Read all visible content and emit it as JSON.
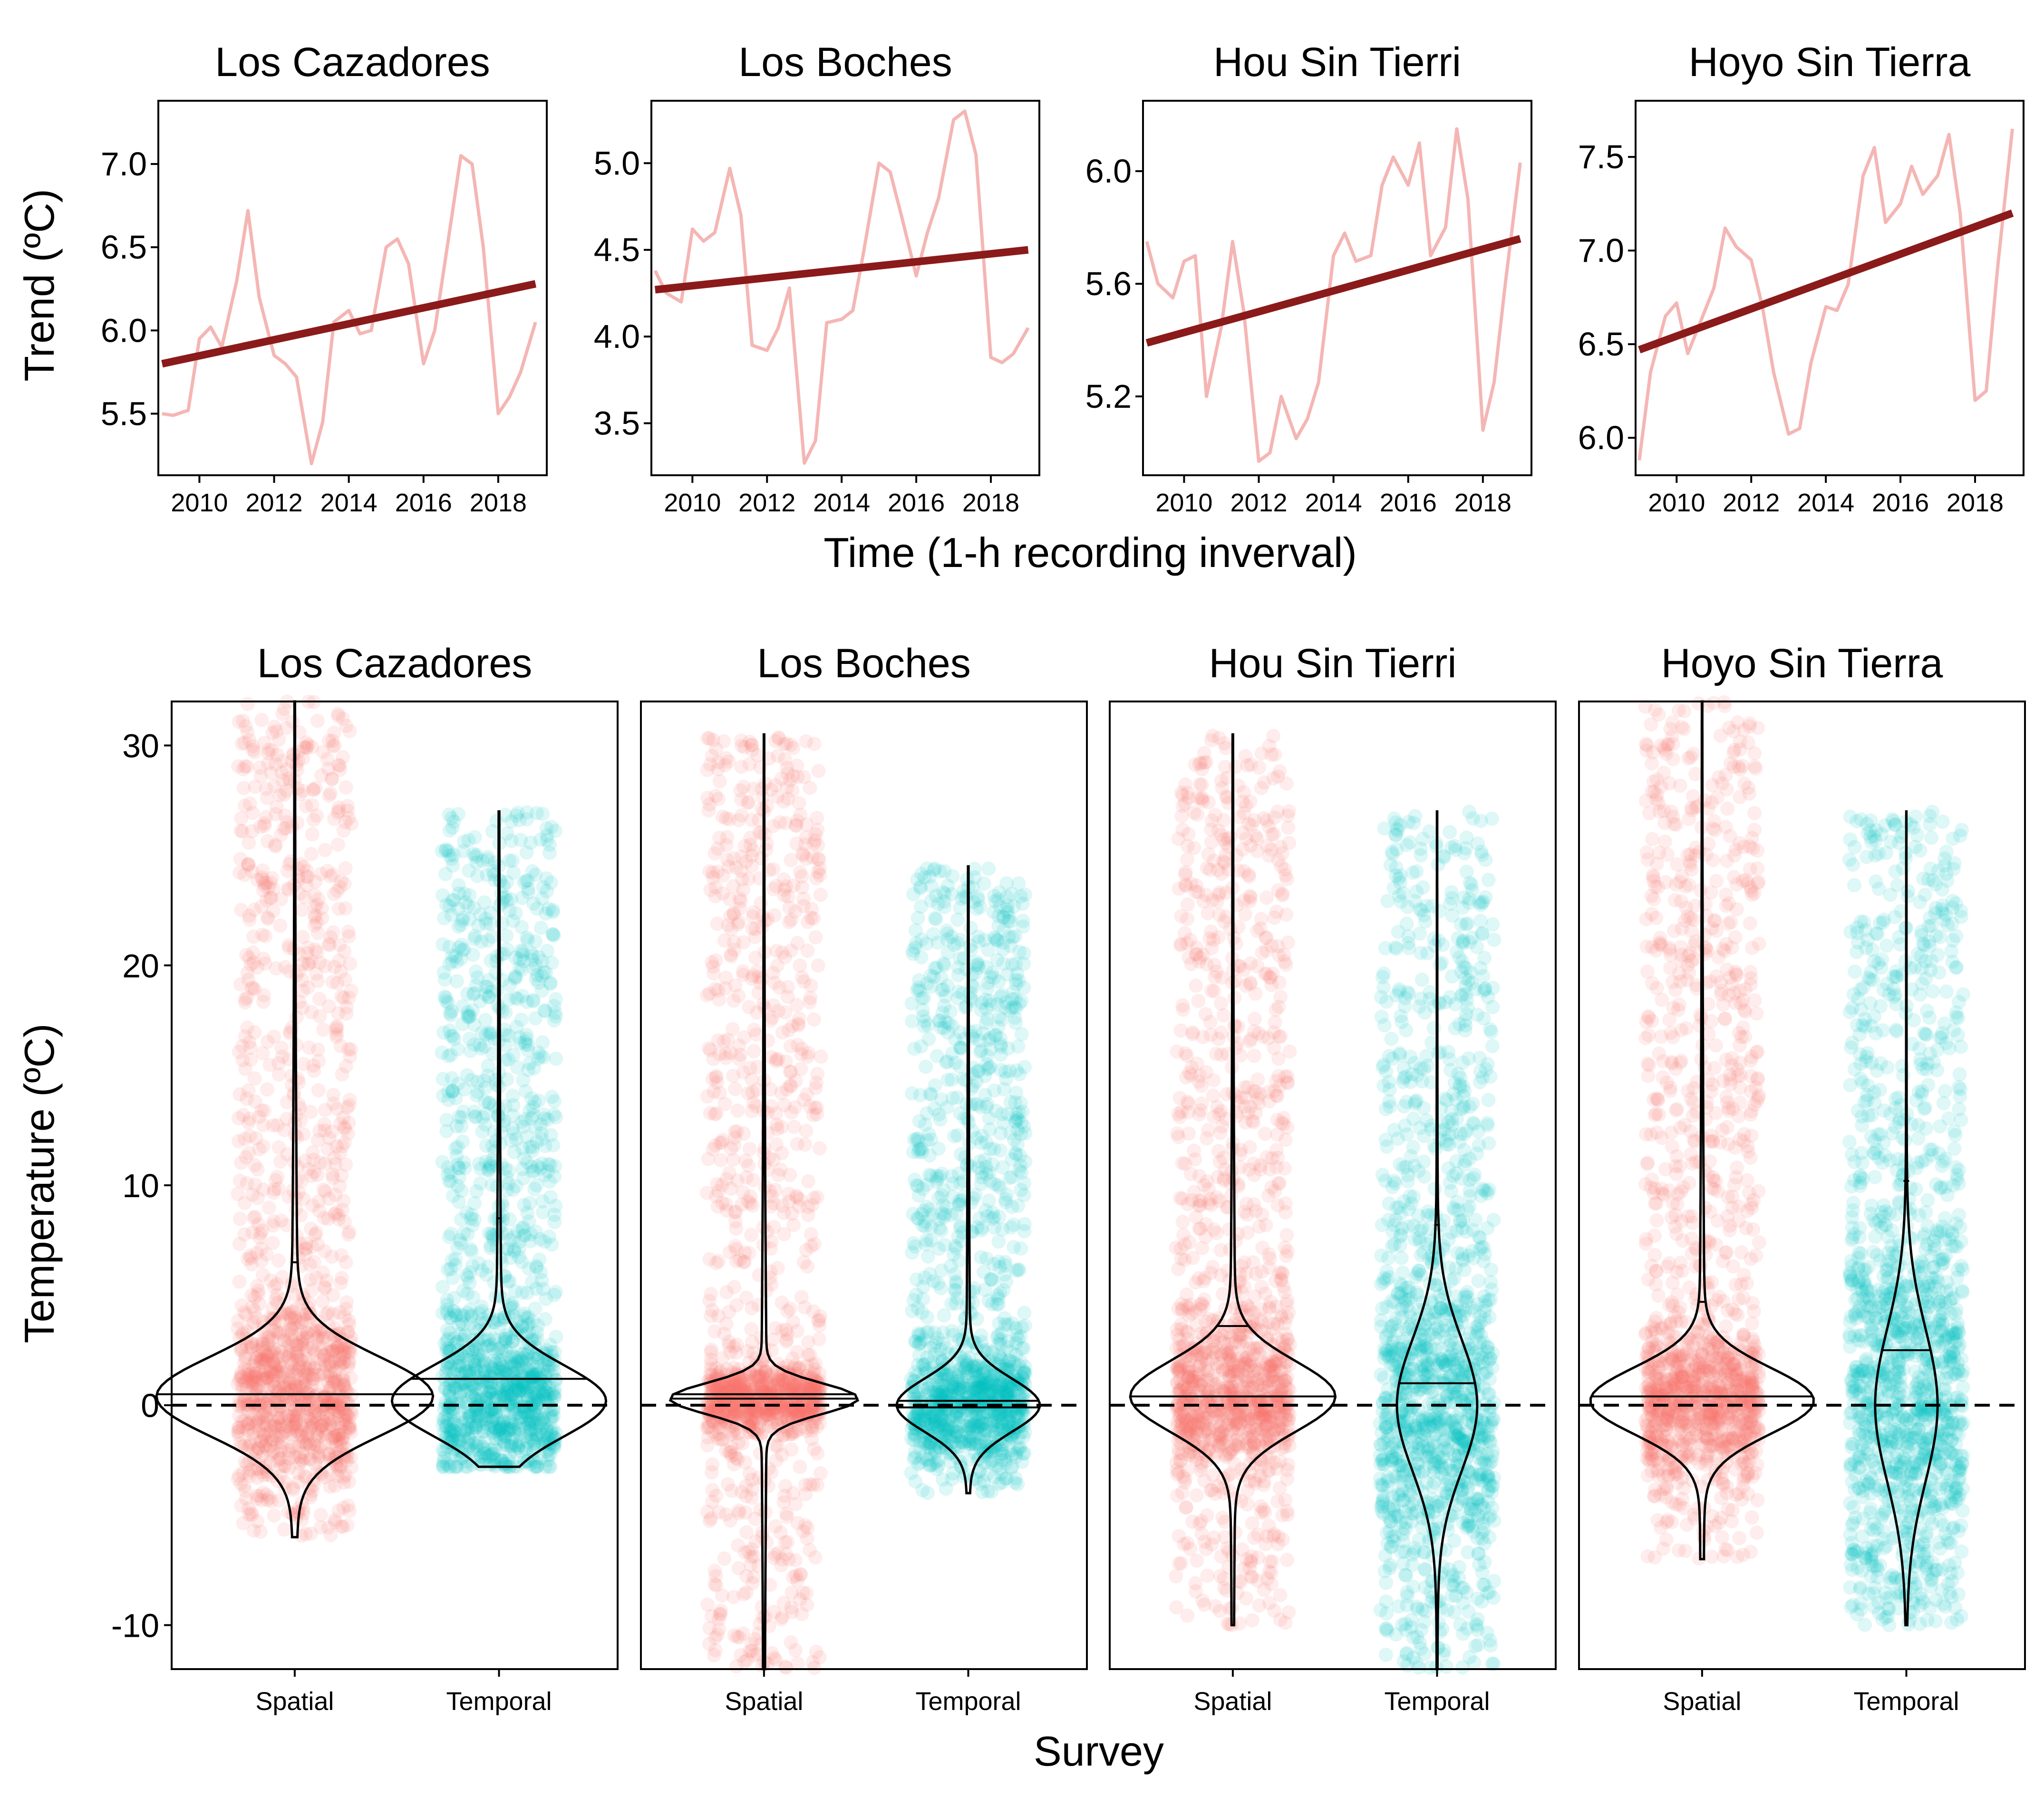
{
  "colors": {
    "trend_raw": "#F4B6B4",
    "trend_fit": "#8B1A1A",
    "spatial": "#F8766D",
    "temporal": "#00BFC4",
    "ink": "#000000"
  },
  "top_row": {
    "ylabel": "Trend (ºC)",
    "xlabel": "Time (1-h recording inverval)"
  },
  "bottom_row": {
    "ylabel": "Temperature (ºC)",
    "xlabel": "Survey"
  },
  "chart_data": [
    {
      "type": "line",
      "title": "Los Cazadores",
      "xlim": [
        2008.9,
        2019.3
      ],
      "ylim": [
        5.13,
        7.38
      ],
      "xticks": [
        2010,
        2012,
        2014,
        2016,
        2018
      ],
      "yticks": [
        5.5,
        6.0,
        6.5,
        7.0
      ],
      "ytick_labels": [
        "5.5",
        "6.0",
        "6.5",
        "7.0"
      ],
      "series": [
        {
          "kind": "raw",
          "x": [
            2009.0,
            2009.3,
            2009.7,
            2010.0,
            2010.3,
            2010.6,
            2011.0,
            2011.3,
            2011.6,
            2012.0,
            2012.3,
            2012.6,
            2013.0,
            2013.3,
            2013.6,
            2014.0,
            2014.3,
            2014.6,
            2015.0,
            2015.3,
            2015.6,
            2016.0,
            2016.3,
            2016.6,
            2017.0,
            2017.3,
            2017.6,
            2018.0,
            2018.3,
            2018.6,
            2019.0
          ],
          "y": [
            5.5,
            5.49,
            5.52,
            5.95,
            6.02,
            5.9,
            6.3,
            6.72,
            6.2,
            5.85,
            5.8,
            5.72,
            5.2,
            5.45,
            6.05,
            6.12,
            5.98,
            6.0,
            6.5,
            6.55,
            6.4,
            5.8,
            6.0,
            6.45,
            7.05,
            7.0,
            6.5,
            5.5,
            5.6,
            5.75,
            6.05
          ]
        },
        {
          "kind": "fit",
          "x": [
            2009.0,
            2019.0
          ],
          "y": [
            5.8,
            6.28
          ]
        }
      ]
    },
    {
      "type": "line",
      "title": "Los Boches",
      "xlim": [
        2008.9,
        2019.3
      ],
      "ylim": [
        3.2,
        5.36
      ],
      "xticks": [
        2010,
        2012,
        2014,
        2016,
        2018
      ],
      "yticks": [
        3.5,
        4.0,
        4.5,
        5.0
      ],
      "ytick_labels": [
        "3.5",
        "4.0",
        "4.5",
        "5.0"
      ],
      "series": [
        {
          "kind": "raw",
          "x": [
            2009.0,
            2009.3,
            2009.7,
            2010.0,
            2010.3,
            2010.6,
            2011.0,
            2011.3,
            2011.6,
            2012.0,
            2012.3,
            2012.6,
            2013.0,
            2013.3,
            2013.6,
            2014.0,
            2014.3,
            2014.6,
            2015.0,
            2015.3,
            2015.6,
            2016.0,
            2016.3,
            2016.6,
            2017.0,
            2017.3,
            2017.6,
            2018.0,
            2018.3,
            2018.6,
            2019.0
          ],
          "y": [
            4.38,
            4.25,
            4.2,
            4.62,
            4.55,
            4.6,
            4.97,
            4.7,
            3.95,
            3.92,
            4.05,
            4.28,
            3.27,
            3.4,
            4.08,
            4.1,
            4.15,
            4.5,
            5.0,
            4.95,
            4.7,
            4.35,
            4.6,
            4.8,
            5.25,
            5.3,
            5.05,
            3.88,
            3.85,
            3.9,
            4.05
          ]
        },
        {
          "kind": "fit",
          "x": [
            2009.0,
            2019.0
          ],
          "y": [
            4.27,
            4.5
          ]
        }
      ]
    },
    {
      "type": "line",
      "title": "Hou Sin Tierri",
      "xlim": [
        2008.9,
        2019.3
      ],
      "ylim": [
        4.92,
        6.25
      ],
      "xticks": [
        2010,
        2012,
        2014,
        2016,
        2018
      ],
      "yticks": [
        5.2,
        5.6,
        6.0
      ],
      "ytick_labels": [
        "5.2",
        "5.6",
        "6.0"
      ],
      "series": [
        {
          "kind": "raw",
          "x": [
            2009.0,
            2009.3,
            2009.7,
            2010.0,
            2010.3,
            2010.6,
            2011.0,
            2011.3,
            2011.6,
            2012.0,
            2012.3,
            2012.6,
            2013.0,
            2013.3,
            2013.6,
            2014.0,
            2014.3,
            2014.6,
            2015.0,
            2015.3,
            2015.6,
            2016.0,
            2016.3,
            2016.6,
            2017.0,
            2017.3,
            2017.6,
            2018.0,
            2018.3,
            2018.6,
            2019.0
          ],
          "y": [
            5.75,
            5.6,
            5.55,
            5.68,
            5.7,
            5.2,
            5.45,
            5.75,
            5.5,
            4.97,
            5.0,
            5.2,
            5.05,
            5.12,
            5.25,
            5.7,
            5.78,
            5.68,
            5.7,
            5.95,
            6.05,
            5.95,
            6.1,
            5.7,
            5.8,
            6.15,
            5.9,
            5.08,
            5.25,
            5.6,
            6.03
          ]
        },
        {
          "kind": "fit",
          "x": [
            2009.0,
            2019.0
          ],
          "y": [
            5.39,
            5.76
          ]
        }
      ]
    },
    {
      "type": "line",
      "title": "Hoyo Sin Tierra",
      "xlim": [
        2008.9,
        2019.3
      ],
      "ylim": [
        5.8,
        7.8
      ],
      "xticks": [
        2010,
        2012,
        2014,
        2016,
        2018
      ],
      "yticks": [
        6.0,
        6.5,
        7.0,
        7.5
      ],
      "ytick_labels": [
        "6.0",
        "6.5",
        "7.0",
        "7.5"
      ],
      "series": [
        {
          "kind": "raw",
          "x": [
            2009.0,
            2009.3,
            2009.7,
            2010.0,
            2010.3,
            2010.6,
            2011.0,
            2011.3,
            2011.6,
            2012.0,
            2012.3,
            2012.6,
            2013.0,
            2013.3,
            2013.6,
            2014.0,
            2014.3,
            2014.6,
            2015.0,
            2015.3,
            2015.6,
            2016.0,
            2016.3,
            2016.6,
            2017.0,
            2017.3,
            2017.6,
            2018.0,
            2018.3,
            2018.6,
            2019.0
          ],
          "y": [
            5.88,
            6.35,
            6.65,
            6.72,
            6.45,
            6.6,
            6.8,
            7.12,
            7.02,
            6.95,
            6.7,
            6.35,
            6.02,
            6.05,
            6.4,
            6.7,
            6.68,
            6.82,
            7.4,
            7.55,
            7.15,
            7.25,
            7.45,
            7.3,
            7.4,
            7.62,
            7.2,
            6.2,
            6.25,
            6.9,
            7.65
          ]
        },
        {
          "kind": "fit",
          "x": [
            2009.0,
            2019.0
          ],
          "y": [
            6.47,
            7.2
          ]
        }
      ]
    },
    {
      "type": "scatter",
      "title": "Los Cazadores",
      "ylim": [
        -12,
        32
      ],
      "yticks": [
        -10,
        0,
        10,
        20,
        30
      ],
      "categories": [
        "Spatial",
        "Temporal"
      ],
      "series": [
        {
          "name": "Spatial",
          "range": [
            -6,
            32
          ],
          "mode": 0.4,
          "spread": 1.8,
          "median": 0.5,
          "mean": 6.5,
          "max_halfwidth": 0.62
        },
        {
          "name": "Temporal",
          "range": [
            -2.8,
            27
          ],
          "mode": 0.2,
          "spread": 1.6,
          "median": 1.2,
          "mean": 8.5,
          "max_halfwidth": 0.48
        }
      ]
    },
    {
      "type": "scatter",
      "title": "Los Boches",
      "ylim": [
        -12,
        32
      ],
      "yticks": [
        -10,
        0,
        10,
        20,
        30
      ],
      "categories": [
        "Spatial",
        "Temporal"
      ],
      "series": [
        {
          "name": "Spatial",
          "range": [
            -12,
            30.5
          ],
          "mode": 0.3,
          "spread": 0.7,
          "median": 0.5,
          "mean": 0.3,
          "max_halfwidth": 0.42
        },
        {
          "name": "Temporal",
          "range": [
            -4,
            24.5
          ],
          "mode": 0.0,
          "spread": 1.2,
          "median": 0.2,
          "mean": -0.1,
          "max_halfwidth": 0.32
        }
      ]
    },
    {
      "type": "scatter",
      "title": "Hou Sin Tierri",
      "ylim": [
        -12,
        32
      ],
      "yticks": [
        -10,
        0,
        10,
        20,
        30
      ],
      "categories": [
        "Spatial",
        "Temporal"
      ],
      "series": [
        {
          "name": "Spatial",
          "range": [
            -10,
            30.5
          ],
          "mode": 0.4,
          "spread": 1.6,
          "median": 0.4,
          "mean": 3.6,
          "max_halfwidth": 0.46
        },
        {
          "name": "Temporal",
          "range": [
            -12,
            27
          ],
          "mode": 0.0,
          "spread": 3.0,
          "median": 1.0,
          "mean": 8.2,
          "max_halfwidth": 0.18
        }
      ]
    },
    {
      "type": "scatter",
      "title": "Hoyo Sin Tierra",
      "ylim": [
        -12,
        32
      ],
      "yticks": [
        -10,
        0,
        10,
        20,
        30
      ],
      "categories": [
        "Spatial",
        "Temporal"
      ],
      "series": [
        {
          "name": "Spatial",
          "range": [
            -7,
            32
          ],
          "mode": 0.2,
          "spread": 1.5,
          "median": 0.4,
          "mean": 4.7,
          "max_halfwidth": 0.5
        },
        {
          "name": "Temporal",
          "range": [
            -10,
            27
          ],
          "mode": 0.0,
          "spread": 3.5,
          "median": 2.5,
          "mean": 10.2,
          "max_halfwidth": 0.14
        }
      ]
    }
  ]
}
